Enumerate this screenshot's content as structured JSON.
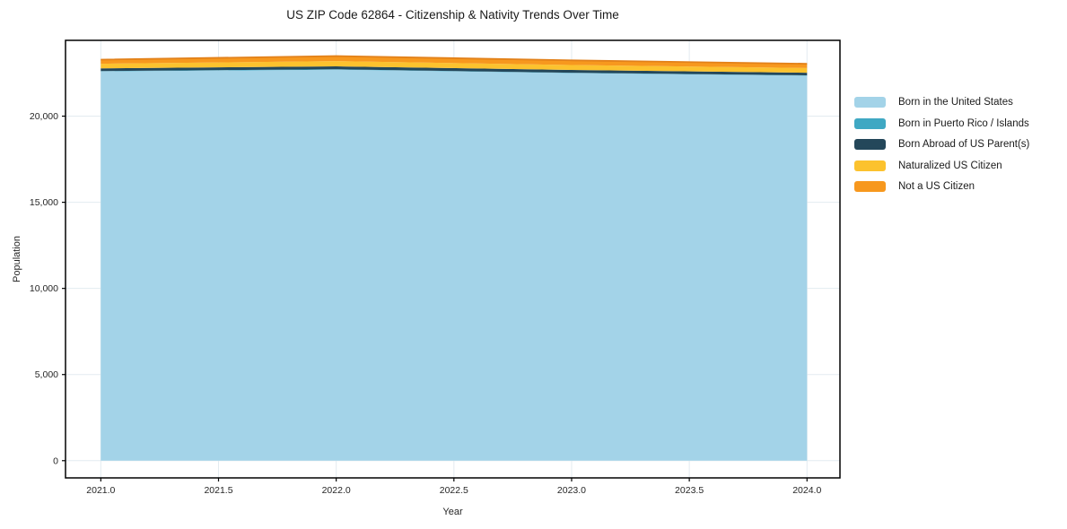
{
  "chart_data": {
    "type": "area",
    "stacked": true,
    "title": "US ZIP Code 62864 - Citizenship & Nativity Trends Over Time",
    "xlabel": "Year",
    "ylabel": "Population",
    "x": [
      2021,
      2022,
      2023,
      2024
    ],
    "series": [
      {
        "name": "Born in the United States",
        "color": "#a3d3e8",
        "values": [
          22600,
          22700,
          22500,
          22350
        ]
      },
      {
        "name": "Born in Puerto Rico / Islands",
        "color": "#3fa8c3",
        "values": [
          20,
          20,
          20,
          20
        ]
      },
      {
        "name": "Born Abroad of US Parent(s)",
        "color": "#24475a",
        "values": [
          150,
          170,
          160,
          150
        ]
      },
      {
        "name": "Naturalized US Citizen",
        "color": "#fcc22e",
        "values": [
          270,
          310,
          290,
          270
        ]
      },
      {
        "name": "Not a US Citizen",
        "color": "#f7981e",
        "edge": "#e2811a",
        "values": [
          240,
          290,
          270,
          250
        ]
      }
    ],
    "xlim": [
      2020.85,
      2024.14
    ],
    "ylim": [
      -1000,
      24400
    ],
    "xticks": {
      "values": [
        2021.0,
        2021.5,
        2022.0,
        2022.5,
        2023.0,
        2023.5,
        2024.0
      ],
      "labels": [
        "2021.0",
        "2021.5",
        "2022.0",
        "2022.5",
        "2023.0",
        "2023.5",
        "2024.0"
      ]
    },
    "yticks": {
      "values": [
        0,
        5000,
        10000,
        15000,
        20000
      ],
      "labels": [
        "0",
        "5,000",
        "10,000",
        "15,000",
        "20,000"
      ]
    },
    "grid": true,
    "grid_color": "#e3ebf0",
    "axis_color": "#000000",
    "text_color": "#262626",
    "legend_position": "right-outside"
  }
}
